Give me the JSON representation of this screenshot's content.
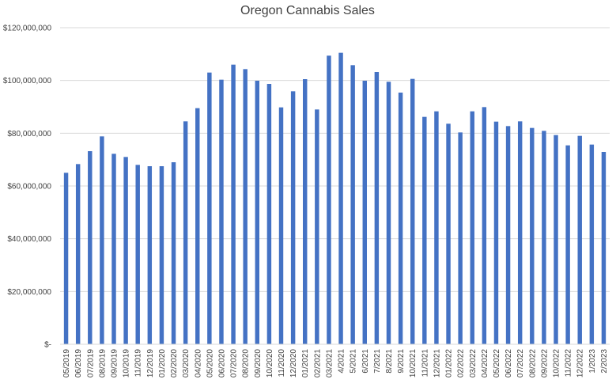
{
  "chart_data": {
    "type": "bar",
    "title": "Oregon Cannabis Sales",
    "xlabel": "",
    "ylabel": "",
    "ylim": [
      0,
      120000000
    ],
    "yticks": [
      0,
      20000000,
      40000000,
      60000000,
      80000000,
      100000000,
      120000000
    ],
    "ytick_labels": [
      "$-",
      "$20,000,000",
      "$40,000,000",
      "$60,000,000",
      "$80,000,000",
      "$100,000,000",
      "$120,000,000"
    ],
    "grid": true,
    "legend": "none",
    "bar_color": "#4472c4",
    "categories": [
      "05/2019",
      "06/2019",
      "07/2019",
      "08/2019",
      "09/2019",
      "10/2019",
      "11/2019",
      "12/2019",
      "01/2020",
      "02/2020",
      "03/2020",
      "04/2020",
      "05/2020",
      "06/2020",
      "07/2020",
      "08/2020",
      "09/2020",
      "10/2020",
      "11/2020",
      "12/2020",
      "01/2021",
      "02/2021",
      "03/2021",
      "4/2021",
      "5/2021",
      "6/2021",
      "7/2021",
      "8/2021",
      "9/2021",
      "10/2021",
      "11/2021",
      "12/2021",
      "01/2022",
      "02/2022",
      "03/2022",
      "04/2022",
      "05/2022",
      "06/2022",
      "07/2022",
      "08/2022",
      "09/2022",
      "10/2022",
      "11/2022",
      "12/2022",
      "1/2023",
      "2/2023"
    ],
    "values": [
      65000000,
      68300000,
      73200000,
      78800000,
      72200000,
      71000000,
      68000000,
      67500000,
      67500000,
      69000000,
      84500000,
      89500000,
      103000000,
      100300000,
      106000000,
      104300000,
      99900000,
      98700000,
      89800000,
      95900000,
      100500000,
      89000000,
      109400000,
      110500000,
      105800000,
      99900000,
      103200000,
      99500000,
      95400000,
      100600000,
      86200000,
      88300000,
      83600000,
      80300000,
      88300000,
      89900000,
      84400000,
      82700000,
      84500000,
      82000000,
      80900000,
      79300000,
      75400000,
      79000000,
      75700000,
      72900000
    ]
  }
}
